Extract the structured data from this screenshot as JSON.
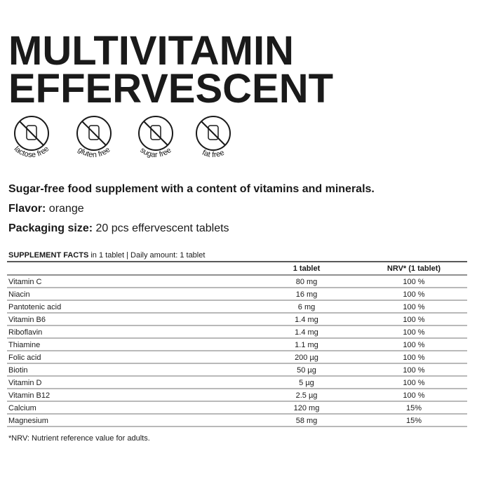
{
  "header": {
    "title_lines": [
      "MULTIVITAMIN",
      "EFFERVESCENT"
    ]
  },
  "badges": [
    "lactose free",
    "gluten free",
    "sugar free",
    "fat free"
  ],
  "description": "Sugar-free food supplement with a content of vitamins and minerals.",
  "flavor": {
    "label": "Flavor:",
    "value": "orange"
  },
  "packaging": {
    "label": "Packaging size:",
    "value": "20 pcs effervescent tablets"
  },
  "table": {
    "caption_bold": "SUPPLEMENT FACTS",
    "caption_rest": "in 1 tablet | Daily amount: 1 tablet",
    "columns": [
      "1 tablet",
      "NRV* (1 tablet)"
    ],
    "rows": [
      [
        "Vitamin C",
        "80 mg",
        "100 %"
      ],
      [
        "Niacin",
        "16 mg",
        "100 %"
      ],
      [
        "Pantotenic acid",
        "6 mg",
        "100 %"
      ],
      [
        "Vitamin B6",
        "1.4 mg",
        "100 %"
      ],
      [
        "Riboflavin",
        "1.4 mg",
        "100 %"
      ],
      [
        "Thiamine",
        "1.1 mg",
        "100 %"
      ],
      [
        "Folic acid",
        "200 µg",
        "100 %"
      ],
      [
        "Biotin",
        "50 µg",
        "100 %"
      ],
      [
        "Vitamin D",
        "5 µg",
        "100 %"
      ],
      [
        "Vitamin B12",
        "2.5 µg",
        "100 %"
      ],
      [
        "Calcium",
        "120 mg",
        "15%"
      ],
      [
        "Magnesium",
        "58 mg",
        "15%"
      ]
    ],
    "footnote": "*NRV: Nutrient reference value for adults."
  }
}
